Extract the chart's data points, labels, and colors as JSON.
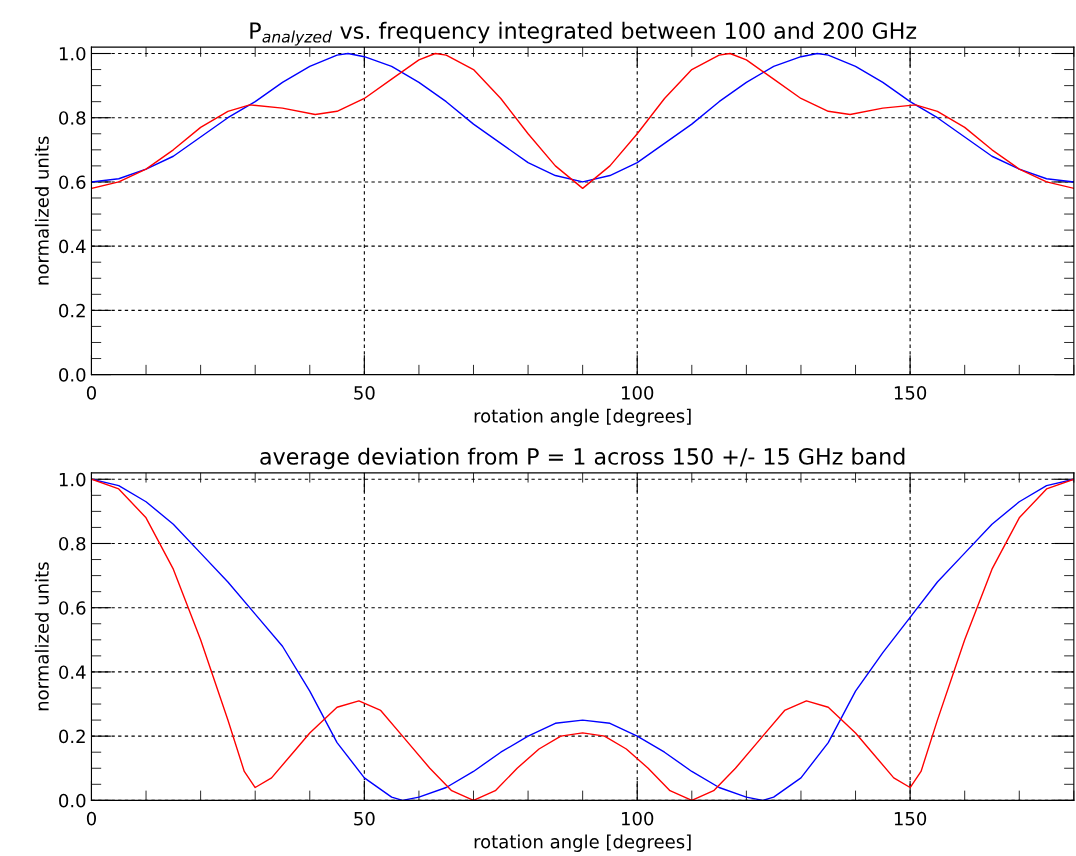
{
  "chart_data": [
    {
      "type": "line",
      "title": "P$_{analyzed}$ vs. frequency integrated between 100 and 200 GHz",
      "xlabel": "rotation angle [degrees]",
      "ylabel": "normalized units",
      "xlim": [
        0,
        180
      ],
      "ylim": [
        0,
        1.02
      ],
      "xticks": [
        0,
        50,
        100,
        150
      ],
      "yticks": [
        {
          "value": 0,
          "label": "0.0"
        },
        {
          "value": 0.2,
          "label": "0.2"
        },
        {
          "value": 0.4,
          "label": "0.4"
        },
        {
          "value": 0.6,
          "label": "0.6"
        },
        {
          "value": 0.8,
          "label": "0.8"
        },
        {
          "value": 1.0,
          "label": "1.0"
        }
      ],
      "grid": true,
      "legend": false,
      "series": [
        {
          "color": "#0000ff",
          "x": [
            0,
            5,
            10,
            15,
            20,
            25,
            30,
            35,
            40,
            45,
            47,
            50,
            55,
            60,
            65,
            70,
            75,
            80,
            85,
            90,
            95,
            100,
            105,
            110,
            115,
            120,
            125,
            130,
            133,
            135,
            140,
            145,
            150,
            155,
            160,
            165,
            170,
            175,
            180
          ],
          "values": [
            0.6,
            0.61,
            0.64,
            0.68,
            0.74,
            0.8,
            0.85,
            0.91,
            0.96,
            0.995,
            1.0,
            0.99,
            0.96,
            0.91,
            0.85,
            0.78,
            0.72,
            0.66,
            0.62,
            0.6,
            0.62,
            0.66,
            0.72,
            0.78,
            0.85,
            0.91,
            0.96,
            0.99,
            1.0,
            0.995,
            0.96,
            0.91,
            0.85,
            0.8,
            0.74,
            0.68,
            0.64,
            0.61,
            0.6
          ]
        },
        {
          "color": "#ff0000",
          "x": [
            0,
            5,
            10,
            15,
            20,
            25,
            29,
            35,
            41,
            45,
            50,
            55,
            60,
            63,
            65,
            70,
            75,
            80,
            85,
            90,
            95,
            100,
            105,
            110,
            115,
            117,
            120,
            125,
            130,
            135,
            139,
            145,
            151,
            155,
            160,
            165,
            170,
            175,
            180
          ],
          "values": [
            0.58,
            0.6,
            0.64,
            0.7,
            0.77,
            0.82,
            0.84,
            0.83,
            0.81,
            0.82,
            0.86,
            0.92,
            0.98,
            1.0,
            0.995,
            0.95,
            0.86,
            0.75,
            0.65,
            0.58,
            0.65,
            0.75,
            0.86,
            0.95,
            0.995,
            1.0,
            0.98,
            0.92,
            0.86,
            0.82,
            0.81,
            0.83,
            0.84,
            0.82,
            0.77,
            0.7,
            0.64,
            0.6,
            0.58
          ]
        }
      ]
    },
    {
      "type": "line",
      "title": "average deviation from P = 1 across 150 +/- 15 GHz band",
      "xlabel": "rotation angle [degrees]",
      "ylabel": "normalized units",
      "xlim": [
        0,
        180
      ],
      "ylim": [
        0,
        1.02
      ],
      "xticks": [
        0,
        50,
        100,
        150
      ],
      "yticks": [
        {
          "value": 0,
          "label": "0.0"
        },
        {
          "value": 0.2,
          "label": "0.2"
        },
        {
          "value": 0.4,
          "label": "0.4"
        },
        {
          "value": 0.6,
          "label": "0.6"
        },
        {
          "value": 0.8,
          "label": "0.8"
        },
        {
          "value": 1.0,
          "label": "1.0"
        }
      ],
      "grid": true,
      "legend": false,
      "series": [
        {
          "color": "#0000ff",
          "x": [
            0,
            5,
            10,
            15,
            20,
            25,
            30,
            35,
            40,
            45,
            50,
            55,
            57,
            60,
            65,
            70,
            75,
            80,
            85,
            90,
            95,
            100,
            105,
            110,
            115,
            120,
            123,
            125,
            130,
            135,
            140,
            145,
            150,
            155,
            160,
            165,
            170,
            175,
            180
          ],
          "values": [
            1.0,
            0.98,
            0.93,
            0.86,
            0.77,
            0.68,
            0.58,
            0.48,
            0.34,
            0.18,
            0.07,
            0.01,
            0.0,
            0.01,
            0.04,
            0.09,
            0.15,
            0.2,
            0.24,
            0.25,
            0.24,
            0.2,
            0.15,
            0.09,
            0.04,
            0.01,
            0.0,
            0.01,
            0.07,
            0.18,
            0.34,
            0.46,
            0.57,
            0.68,
            0.77,
            0.86,
            0.93,
            0.98,
            1.0
          ]
        },
        {
          "color": "#ff0000",
          "x": [
            0,
            5,
            10,
            15,
            20,
            25,
            28,
            30,
            33,
            37,
            40,
            45,
            49,
            53,
            57,
            62,
            66,
            70,
            74,
            78,
            82,
            86,
            90,
            94,
            98,
            102,
            106,
            110,
            114,
            118,
            123,
            127,
            131,
            135,
            140,
            143,
            147,
            150,
            152,
            155,
            160,
            165,
            170,
            175,
            180
          ],
          "values": [
            1.0,
            0.97,
            0.88,
            0.72,
            0.5,
            0.25,
            0.09,
            0.04,
            0.07,
            0.15,
            0.21,
            0.29,
            0.31,
            0.28,
            0.2,
            0.1,
            0.03,
            0.0,
            0.03,
            0.1,
            0.16,
            0.2,
            0.21,
            0.2,
            0.16,
            0.1,
            0.03,
            0.0,
            0.03,
            0.1,
            0.2,
            0.28,
            0.31,
            0.29,
            0.21,
            0.15,
            0.07,
            0.04,
            0.09,
            0.25,
            0.5,
            0.72,
            0.88,
            0.97,
            1.0
          ]
        }
      ]
    }
  ]
}
